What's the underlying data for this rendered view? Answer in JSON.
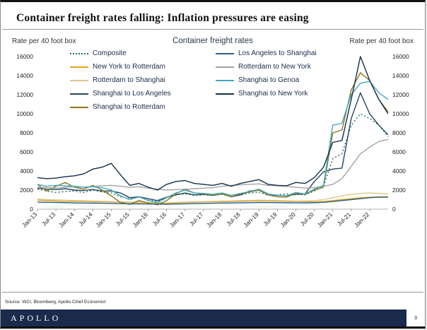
{
  "page": {
    "title": "Container freight rates falling: Inflation pressures are easing",
    "source": "Source: WCI, Bloomberg, Apollo Chief Economist",
    "brand": "APOLLO",
    "brand_color": "#1a2b4c",
    "page_number": "3"
  },
  "chart_data": {
    "type": "line",
    "title": "Container freight rates",
    "ylabel_left": "Rate per 40 foot box",
    "ylabel_right": "Rate per 40 foot box",
    "ylim": [
      0,
      16000
    ],
    "ytick_step": 2000,
    "grid": false,
    "legend_position": "top-inside-two-columns",
    "x_months": [
      0,
      3,
      6,
      9,
      12,
      15,
      18,
      21,
      24,
      27,
      30,
      33,
      36,
      39,
      42,
      45,
      48,
      51,
      54,
      57,
      60,
      63,
      66,
      69,
      72,
      75,
      78,
      81,
      84,
      87,
      90,
      93,
      96,
      99,
      102,
      105,
      108,
      111,
      114
    ],
    "x_tick_positions": [
      0,
      6,
      12,
      18,
      24,
      30,
      36,
      42,
      48,
      54,
      60,
      66,
      72,
      78,
      84,
      90,
      96,
      102,
      108
    ],
    "x_tick_labels": [
      "Jan-13",
      "Jul-13",
      "Jan-14",
      "Jul-14",
      "Jan-15",
      "Jul-15",
      "Jan-16",
      "Jul-16",
      "Jan-17",
      "Jul-17",
      "Jan-18",
      "Jul-18",
      "Jan-19",
      "Jul-19",
      "Jan-20",
      "Jul-20",
      "Jan-21",
      "Jul-21",
      "Jan-22"
    ],
    "series": [
      {
        "name": "Composite",
        "color": "#1a6b5a",
        "dash": "2,3",
        "values": [
          2100,
          1900,
          1750,
          1850,
          1900,
          1750,
          2000,
          1800,
          1700,
          1300,
          1100,
          1250,
          950,
          800,
          1200,
          1500,
          1600,
          1450,
          1500,
          1450,
          1550,
          1350,
          1500,
          1700,
          1800,
          1450,
          1500,
          1600,
          1550,
          1500,
          1900,
          2400,
          5300,
          5800,
          8800,
          10000,
          9500,
          8800,
          7600
        ]
      },
      {
        "name": "New York to Rotterdam",
        "color": "#e3a21a",
        "dash": "",
        "values": [
          950,
          900,
          850,
          800,
          820,
          800,
          780,
          760,
          750,
          720,
          700,
          680,
          650,
          620,
          600,
          640,
          700,
          720,
          750,
          760,
          780,
          800,
          820,
          850,
          870,
          850,
          830,
          820,
          800,
          780,
          760,
          800,
          900,
          1000,
          1100,
          1200,
          1250,
          1300,
          1300
        ]
      },
      {
        "name": "Rotterdam to Shanghai",
        "color": "#d8c690",
        "dash": "",
        "values": [
          1050,
          1000,
          980,
          950,
          900,
          880,
          850,
          830,
          800,
          780,
          750,
          730,
          700,
          680,
          660,
          700,
          750,
          780,
          800,
          820,
          850,
          870,
          900,
          920,
          950,
          930,
          900,
          880,
          860,
          850,
          900,
          1000,
          1200,
          1400,
          1550,
          1650,
          1700,
          1650,
          1600
        ]
      },
      {
        "name": "Shanghai to Los Angeles",
        "color": "#24455f",
        "dash": "",
        "values": [
          2200,
          2100,
          2050,
          2150,
          2000,
          1950,
          2050,
          1900,
          1900,
          1700,
          1200,
          1300,
          1100,
          900,
          1250,
          1500,
          1700,
          1500,
          1550,
          1450,
          1600,
          1300,
          1500,
          1900,
          2000,
          1500,
          1450,
          1400,
          1550,
          1600,
          2900,
          3900,
          4200,
          4300,
          9500,
          12200,
          10000,
          8800,
          7800
        ]
      },
      {
        "name": "Shanghai to Rotterdam",
        "color": "#8f7617",
        "dash": "",
        "values": [
          2600,
          1900,
          2400,
          2800,
          2300,
          2100,
          2500,
          2000,
          1400,
          700,
          500,
          900,
          650,
          450,
          900,
          1600,
          2100,
          1700,
          1600,
          1500,
          1600,
          1300,
          1600,
          1800,
          2000,
          1500,
          1300,
          1250,
          1700,
          1550,
          2000,
          2300,
          8000,
          8300,
          12500,
          14300,
          13500,
          11500,
          10200
        ]
      },
      {
        "name": "Los Angeles to Shanghai",
        "color": "#27618a",
        "dash": "",
        "values": [
          750,
          720,
          700,
          680,
          650,
          640,
          630,
          620,
          600,
          580,
          560,
          550,
          540,
          530,
          520,
          540,
          560,
          580,
          600,
          620,
          640,
          650,
          660,
          680,
          700,
          690,
          680,
          670,
          660,
          650,
          680,
          720,
          800,
          900,
          1000,
          1100,
          1200,
          1250,
          1250
        ]
      },
      {
        "name": "Rotterdam to New York",
        "color": "#a3a3a3",
        "dash": "",
        "values": [
          2300,
          2250,
          2200,
          2300,
          2350,
          2300,
          2400,
          2450,
          2500,
          2400,
          2300,
          2350,
          2200,
          2100,
          2000,
          2050,
          2100,
          2150,
          2200,
          2250,
          2400,
          2500,
          2550,
          2600,
          2650,
          2500,
          2450,
          2400,
          2300,
          2200,
          2250,
          2400,
          2600,
          3200,
          4500,
          5800,
          6500,
          7100,
          7300
        ]
      },
      {
        "name": "Shanghai to Genoa",
        "color": "#3fa8bf",
        "dash": "",
        "values": [
          2600,
          2400,
          2500,
          2450,
          2400,
          2300,
          2350,
          2250,
          2000,
          1400,
          1000,
          1300,
          900,
          700,
          1200,
          1700,
          2000,
          1700,
          1650,
          1550,
          1700,
          1450,
          1650,
          1850,
          2100,
          1600,
          1450,
          1400,
          1750,
          1600,
          2100,
          2500,
          8800,
          9000,
          12000,
          13200,
          13400,
          12200,
          11500
        ]
      },
      {
        "name": "Shanghai to New York",
        "color": "#142f4b",
        "dash": "",
        "values": [
          3300,
          3200,
          3250,
          3400,
          3500,
          3700,
          4200,
          4400,
          4800,
          3600,
          2500,
          2700,
          2300,
          2000,
          2600,
          2900,
          3000,
          2700,
          2600,
          2500,
          2700,
          2400,
          2700,
          2900,
          3100,
          2600,
          2500,
          2450,
          2800,
          2700,
          3300,
          4400,
          7000,
          7200,
          11500,
          16000,
          13500,
          11500,
          10000
        ]
      }
    ]
  }
}
